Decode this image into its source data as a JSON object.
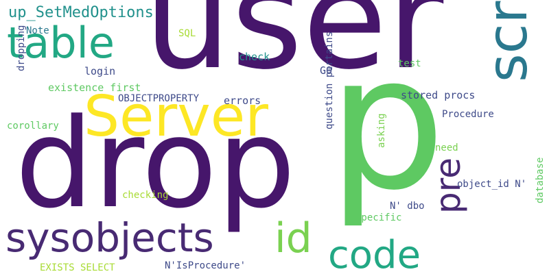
{
  "background_color": "#ffffff",
  "palette": {
    "dark_purple": "#46166b",
    "purple": "#482a73",
    "indigo": "#3e4a89",
    "blue": "#31688e",
    "teal": "#2a788e",
    "sea": "#21918c",
    "green": "#22a884",
    "light_green": "#5ec962",
    "lime": "#7ad151",
    "yellow_green": "#a8db34",
    "yellow": "#fde725"
  },
  "words": [
    {
      "text": "user",
      "color": "#46166b"
    },
    {
      "text": "p",
      "color": "#5ec962"
    },
    {
      "text": "drop",
      "color": "#46166b"
    },
    {
      "text": "Server",
      "color": "#fde725"
    },
    {
      "text": "script",
      "color": "#2a788e"
    },
    {
      "text": "table",
      "color": "#22a884"
    },
    {
      "text": "sysobjects",
      "color": "#482a73"
    },
    {
      "text": "id",
      "color": "#7ad151"
    },
    {
      "text": "code",
      "color": "#22a884"
    },
    {
      "text": "pre",
      "color": "#482a73"
    },
    {
      "text": "up_SetMedOptions",
      "color": "#21918c"
    },
    {
      "text": "Note",
      "color": "#2a788e"
    },
    {
      "text": "SQL",
      "color": "#a8db34"
    },
    {
      "text": "check",
      "color": "#21918c"
    },
    {
      "text": "test",
      "color": "#5ec962"
    },
    {
      "text": "login",
      "color": "#3e4a89"
    },
    {
      "text": "GO",
      "color": "#3e4a89"
    },
    {
      "text": "existence first",
      "color": "#5ec962"
    },
    {
      "text": "dropping",
      "color": "#3e4a89"
    },
    {
      "text": "OBJECTPROPERTY",
      "color": "#3e4a89"
    },
    {
      "text": "errors",
      "color": "#3e4a89"
    },
    {
      "text": "stored procs",
      "color": "#3e4a89"
    },
    {
      "text": "Procedure",
      "color": "#3e4a89"
    },
    {
      "text": "corollary",
      "color": "#5ec962"
    },
    {
      "text": "question pertains",
      "color": "#3e4a89"
    },
    {
      "text": "asking",
      "color": "#7ad151"
    },
    {
      "text": "need",
      "color": "#7ad151"
    },
    {
      "text": "object_id N'",
      "color": "#3e4a89"
    },
    {
      "text": "checking",
      "color": "#a8db34"
    },
    {
      "text": "N' dbo",
      "color": "#3e4a89"
    },
    {
      "text": "specific",
      "color": "#5ec962"
    },
    {
      "text": "database",
      "color": "#5ec962"
    },
    {
      "text": "EXISTS SELECT",
      "color": "#a8db34"
    },
    {
      "text": "N'IsProcedure'",
      "color": "#3e4a89"
    }
  ]
}
